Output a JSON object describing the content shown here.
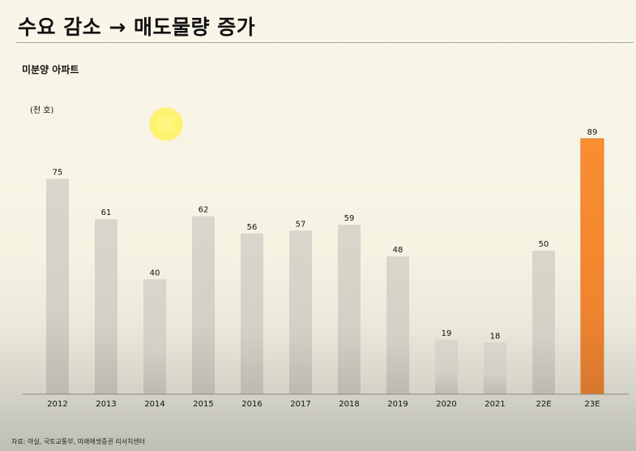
{
  "header": {
    "title": "수요 감소 → 매도물량 증가",
    "chart_title": "미분양 아파트",
    "unit": "(천 호)"
  },
  "footer": {
    "source": "자료: 야실, 국토교통부, 미래에셋증권 리서치센터"
  },
  "colors": {
    "bar_default": "#d5d2c7",
    "bar_highlight": "#f68c32"
  },
  "chart_data": {
    "type": "bar",
    "title": "미분양 아파트",
    "ylabel": "(천 호)",
    "categories": [
      "2012",
      "2013",
      "2014",
      "2015",
      "2016",
      "2017",
      "2018",
      "2019",
      "2020",
      "2021",
      "22E",
      "23E"
    ],
    "values": [
      75,
      61,
      40,
      62,
      56,
      57,
      59,
      48,
      19,
      18,
      50,
      89
    ],
    "highlight": [
      "23E"
    ],
    "ylim": [
      0,
      89
    ],
    "grid": false,
    "legend": "none"
  }
}
